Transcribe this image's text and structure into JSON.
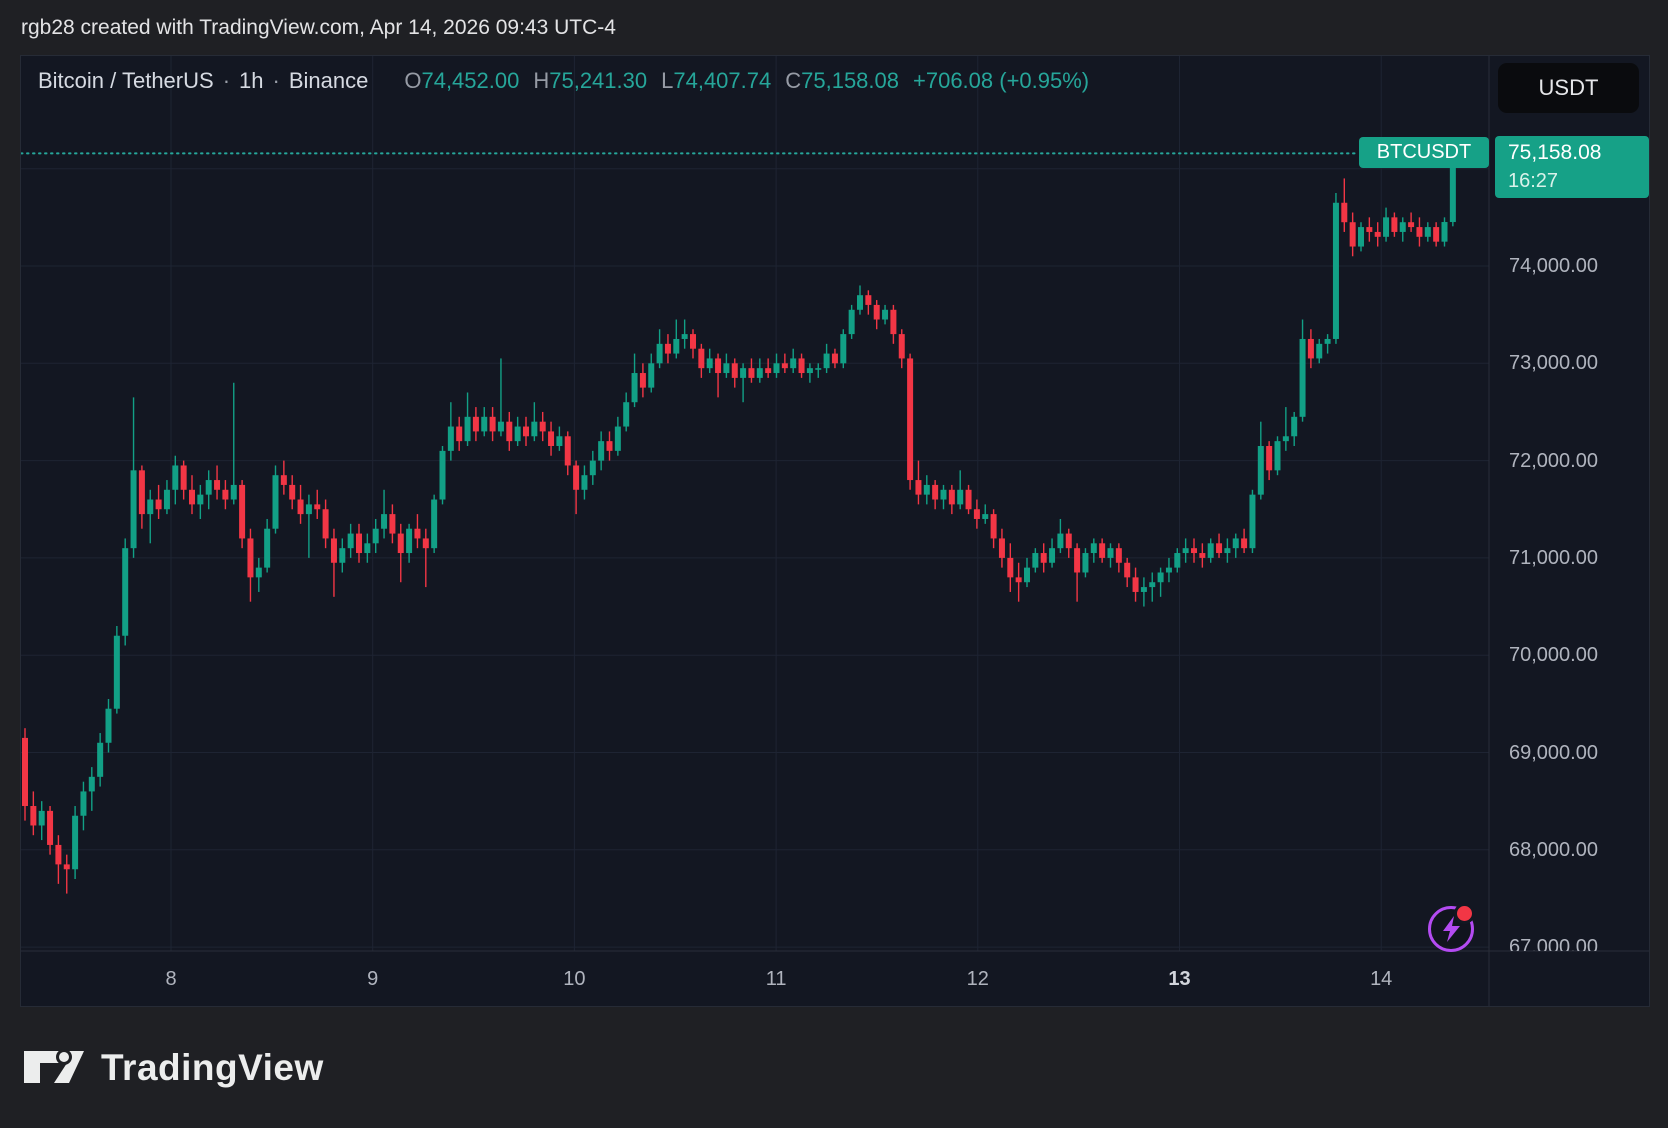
{
  "top_bar": {
    "text": "rgb28 created with TradingView.com, Apr 14, 2026 09:43 UTC-4"
  },
  "header": {
    "symbol": "Bitcoin / TetherUS",
    "dot1": "·",
    "interval": "1h",
    "dot2": "·",
    "exchange": "Binance",
    "ohlc": [
      {
        "label": "O",
        "value": "74,452.00"
      },
      {
        "label": "H",
        "value": "75,241.30"
      },
      {
        "label": "L",
        "value": "74,407.74"
      },
      {
        "label": "C",
        "value": "75,158.08"
      }
    ],
    "change": "+706.08 (+0.95%)"
  },
  "currency_button": {
    "label": "USDT"
  },
  "last_price": {
    "badge": "BTCUSDT",
    "price": "75,158.08",
    "time": "16:27",
    "value": 75158.08
  },
  "price_scale": {
    "labels": [
      {
        "text": "74,000.00",
        "price": 74000
      },
      {
        "text": "73,000.00",
        "price": 73000
      },
      {
        "text": "72,000.00",
        "price": 72000
      },
      {
        "text": "71,000.00",
        "price": 71000
      },
      {
        "text": "70,000.00",
        "price": 70000
      },
      {
        "text": "69,000.00",
        "price": 69000
      },
      {
        "text": "68,000.00",
        "price": 68000
      },
      {
        "text": "67,000.00",
        "price": 67000
      }
    ]
  },
  "time_scale": {
    "labels": [
      {
        "text": "8"
      },
      {
        "text": "9"
      },
      {
        "text": "10"
      },
      {
        "text": "11"
      },
      {
        "text": "12"
      },
      {
        "text": "13",
        "bold": true
      },
      {
        "text": "14"
      }
    ]
  },
  "footer": {
    "logo_text": "TradingView"
  },
  "colors": {
    "up": "#12a086",
    "down": "#f23645",
    "accent": "#26a69a",
    "badge": "#16a187",
    "grid": "#1e2433",
    "axis_line": "#2a2e39",
    "purple": "#b44bf2"
  },
  "chart_data": {
    "type": "candlestick",
    "symbol": "BTCUSDT",
    "name": "Bitcoin / TetherUS",
    "interval": "1h",
    "exchange": "Binance",
    "current_bar": {
      "open": 74452.0,
      "high": 75241.3,
      "low": 74407.74,
      "close": 75158.08,
      "change": 706.08,
      "change_pct": 0.95,
      "time": "16:27"
    },
    "x_axis": {
      "day_labels": [
        "8",
        "9",
        "10",
        "11",
        "12",
        "13",
        "14"
      ],
      "bold_label": "13",
      "range": "Apr 7 - Apr 14, 2026"
    },
    "y_axis": {
      "min": 66900,
      "max": 75600,
      "gridline_step": 1000,
      "gridlines": [
        75000,
        74000,
        73000,
        72000,
        71000,
        70000,
        69000,
        68000,
        67000
      ]
    },
    "legend_position": "none",
    "grid": true,
    "candles_ohlc": [
      [
        69150,
        69250,
        68300,
        68450
      ],
      [
        68450,
        68600,
        68150,
        68250
      ],
      [
        68250,
        68500,
        68100,
        68400
      ],
      [
        68400,
        68450,
        67950,
        68050
      ],
      [
        68050,
        68150,
        67650,
        67850
      ],
      [
        67850,
        67950,
        67550,
        67800
      ],
      [
        67800,
        68450,
        67700,
        68350
      ],
      [
        68350,
        68700,
        68200,
        68600
      ],
      [
        68600,
        68850,
        68400,
        68750
      ],
      [
        68750,
        69200,
        68650,
        69100
      ],
      [
        69100,
        69550,
        69000,
        69450
      ],
      [
        69450,
        70300,
        69400,
        70200
      ],
      [
        70200,
        71200,
        70100,
        71100
      ],
      [
        71100,
        72650,
        71000,
        71900
      ],
      [
        71900,
        71950,
        71300,
        71450
      ],
      [
        71450,
        71700,
        71150,
        71600
      ],
      [
        71600,
        71750,
        71400,
        71500
      ],
      [
        71500,
        71800,
        71450,
        71700
      ],
      [
        71700,
        72050,
        71550,
        71950
      ],
      [
        71950,
        72000,
        71600,
        71700
      ],
      [
        71700,
        71850,
        71450,
        71550
      ],
      [
        71550,
        71750,
        71400,
        71650
      ],
      [
        71650,
        71900,
        71500,
        71800
      ],
      [
        71800,
        71950,
        71600,
        71700
      ],
      [
        71700,
        71800,
        71500,
        71600
      ],
      [
        71600,
        72800,
        71550,
        71750
      ],
      [
        71750,
        71800,
        71100,
        71200
      ],
      [
        71200,
        71300,
        70550,
        70800
      ],
      [
        70800,
        71000,
        70650,
        70900
      ],
      [
        70900,
        71400,
        70850,
        71300
      ],
      [
        71300,
        71950,
        71250,
        71850
      ],
      [
        71850,
        72000,
        71650,
        71750
      ],
      [
        71750,
        71850,
        71500,
        71600
      ],
      [
        71600,
        71750,
        71350,
        71450
      ],
      [
        71450,
        71650,
        71000,
        71550
      ],
      [
        71550,
        71700,
        71400,
        71500
      ],
      [
        71500,
        71600,
        71100,
        71200
      ],
      [
        71200,
        71300,
        70600,
        70950
      ],
      [
        70950,
        71200,
        70850,
        71100
      ],
      [
        71100,
        71350,
        71000,
        71250
      ],
      [
        71250,
        71350,
        70950,
        71050
      ],
      [
        71050,
        71250,
        70950,
        71150
      ],
      [
        71150,
        71400,
        71050,
        71300
      ],
      [
        71300,
        71700,
        71200,
        71450
      ],
      [
        71450,
        71550,
        71150,
        71250
      ],
      [
        71250,
        71350,
        70750,
        71050
      ],
      [
        71050,
        71350,
        70950,
        71300
      ],
      [
        71300,
        71450,
        71100,
        71200
      ],
      [
        71200,
        71300,
        70700,
        71100
      ],
      [
        71100,
        71650,
        71050,
        71600
      ],
      [
        71600,
        72150,
        71550,
        72100
      ],
      [
        72100,
        72600,
        72000,
        72350
      ],
      [
        72350,
        72450,
        72100,
        72200
      ],
      [
        72200,
        72700,
        72150,
        72450
      ],
      [
        72450,
        72550,
        72200,
        72300
      ],
      [
        72300,
        72550,
        72250,
        72450
      ],
      [
        72450,
        72550,
        72200,
        72300
      ],
      [
        72300,
        73050,
        72250,
        72400
      ],
      [
        72400,
        72500,
        72100,
        72200
      ],
      [
        72200,
        72450,
        72150,
        72350
      ],
      [
        72350,
        72450,
        72150,
        72250
      ],
      [
        72250,
        72600,
        72200,
        72400
      ],
      [
        72400,
        72500,
        72200,
        72300
      ],
      [
        72300,
        72400,
        72050,
        72150
      ],
      [
        72150,
        72350,
        72100,
        72250
      ],
      [
        72250,
        72300,
        71850,
        71950
      ],
      [
        71950,
        72000,
        71450,
        71700
      ],
      [
        71700,
        71950,
        71600,
        71850
      ],
      [
        71850,
        72100,
        71750,
        72000
      ],
      [
        72000,
        72300,
        71900,
        72200
      ],
      [
        72200,
        72300,
        72000,
        72100
      ],
      [
        72100,
        72450,
        72050,
        72350
      ],
      [
        72350,
        72700,
        72300,
        72600
      ],
      [
        72600,
        73100,
        72550,
        72900
      ],
      [
        72900,
        73000,
        72650,
        72750
      ],
      [
        72750,
        73100,
        72700,
        73000
      ],
      [
        73000,
        73350,
        72950,
        73200
      ],
      [
        73200,
        73300,
        73000,
        73100
      ],
      [
        73100,
        73450,
        73050,
        73250
      ],
      [
        73250,
        73450,
        73150,
        73300
      ],
      [
        73300,
        73350,
        73050,
        73150
      ],
      [
        73150,
        73200,
        72850,
        72950
      ],
      [
        72950,
        73150,
        72900,
        73050
      ],
      [
        73050,
        73100,
        72650,
        72900
      ],
      [
        72900,
        73100,
        72850,
        73000
      ],
      [
        73000,
        73050,
        72750,
        72850
      ],
      [
        72850,
        73000,
        72600,
        72950
      ],
      [
        72950,
        73050,
        72800,
        72850
      ],
      [
        72850,
        73050,
        72800,
        72950
      ],
      [
        72950,
        73050,
        72850,
        72900
      ],
      [
        72900,
        73100,
        72850,
        73000
      ],
      [
        73000,
        73100,
        72900,
        72950
      ],
      [
        72950,
        73150,
        72900,
        73050
      ],
      [
        73050,
        73100,
        72850,
        72900
      ],
      [
        72900,
        73000,
        72800,
        72950
      ],
      [
        72950,
        73000,
        72850,
        72950
      ],
      [
        72950,
        73200,
        72900,
        73100
      ],
      [
        73100,
        73150,
        72950,
        73000
      ],
      [
        73000,
        73350,
        72950,
        73300
      ],
      [
        73300,
        73600,
        73250,
        73550
      ],
      [
        73550,
        73800,
        73500,
        73700
      ],
      [
        73700,
        73750,
        73500,
        73600
      ],
      [
        73600,
        73650,
        73350,
        73450
      ],
      [
        73450,
        73600,
        73400,
        73550
      ],
      [
        73550,
        73600,
        73200,
        73300
      ],
      [
        73300,
        73350,
        72950,
        73050
      ],
      [
        73050,
        73100,
        71700,
        71800
      ],
      [
        71800,
        72000,
        71550,
        71650
      ],
      [
        71650,
        71850,
        71550,
        71750
      ],
      [
        71750,
        71800,
        71500,
        71600
      ],
      [
        71600,
        71750,
        71500,
        71700
      ],
      [
        71700,
        71750,
        71450,
        71550
      ],
      [
        71550,
        71900,
        71500,
        71700
      ],
      [
        71700,
        71750,
        71450,
        71500
      ],
      [
        71500,
        71600,
        71300,
        71400
      ],
      [
        71400,
        71550,
        71350,
        71450
      ],
      [
        71450,
        71500,
        71100,
        71200
      ],
      [
        71200,
        71300,
        70900,
        71000
      ],
      [
        71000,
        71150,
        70650,
        70800
      ],
      [
        70800,
        70950,
        70550,
        70750
      ],
      [
        70750,
        71000,
        70700,
        70900
      ],
      [
        70900,
        71100,
        70850,
        71050
      ],
      [
        71050,
        71150,
        70850,
        70950
      ],
      [
        70950,
        71200,
        70900,
        71100
      ],
      [
        71100,
        71400,
        71050,
        71250
      ],
      [
        71250,
        71300,
        71000,
        71100
      ],
      [
        71100,
        71150,
        70550,
        70850
      ],
      [
        70850,
        71100,
        70800,
        71050
      ],
      [
        71050,
        71200,
        70950,
        71150
      ],
      [
        71150,
        71200,
        70950,
        71000
      ],
      [
        71000,
        71150,
        70900,
        71100
      ],
      [
        71100,
        71150,
        70850,
        70950
      ],
      [
        70950,
        71000,
        70700,
        70800
      ],
      [
        70800,
        70900,
        70550,
        70650
      ],
      [
        70650,
        70800,
        70500,
        70700
      ],
      [
        70700,
        70850,
        70550,
        70750
      ],
      [
        70750,
        70900,
        70600,
        70850
      ],
      [
        70850,
        71000,
        70750,
        70900
      ],
      [
        70900,
        71100,
        70850,
        71050
      ],
      [
        71050,
        71200,
        70950,
        71100
      ],
      [
        71100,
        71200,
        70950,
        71050
      ],
      [
        71050,
        71150,
        70900,
        71000
      ],
      [
        71000,
        71200,
        70950,
        71150
      ],
      [
        71150,
        71250,
        71000,
        71050
      ],
      [
        71050,
        71200,
        70950,
        71100
      ],
      [
        71100,
        71250,
        71000,
        71200
      ],
      [
        71200,
        71300,
        71050,
        71100
      ],
      [
        71100,
        71700,
        71050,
        71650
      ],
      [
        71650,
        72400,
        71600,
        72150
      ],
      [
        72150,
        72200,
        71800,
        71900
      ],
      [
        71900,
        72250,
        71850,
        72200
      ],
      [
        72200,
        72550,
        72100,
        72250
      ],
      [
        72250,
        72500,
        72150,
        72450
      ],
      [
        72450,
        73450,
        72400,
        73250
      ],
      [
        73250,
        73350,
        72950,
        73050
      ],
      [
        73050,
        73250,
        73000,
        73200
      ],
      [
        73200,
        73300,
        73100,
        73250
      ],
      [
        73250,
        74750,
        73200,
        74650
      ],
      [
        74650,
        74900,
        74350,
        74450
      ],
      [
        74450,
        74550,
        74100,
        74200
      ],
      [
        74200,
        74450,
        74150,
        74400
      ],
      [
        74400,
        74500,
        74250,
        74350
      ],
      [
        74350,
        74450,
        74200,
        74300
      ],
      [
        74300,
        74600,
        74250,
        74500
      ],
      [
        74500,
        74550,
        74300,
        74350
      ],
      [
        74350,
        74500,
        74250,
        74450
      ],
      [
        74450,
        74550,
        74350,
        74400
      ],
      [
        74400,
        74500,
        74200,
        74300
      ],
      [
        74300,
        74450,
        74250,
        74400
      ],
      [
        74400,
        74450,
        74200,
        74250
      ],
      [
        74250,
        74500,
        74200,
        74452
      ],
      [
        74452,
        75241,
        74408,
        75158
      ]
    ]
  }
}
